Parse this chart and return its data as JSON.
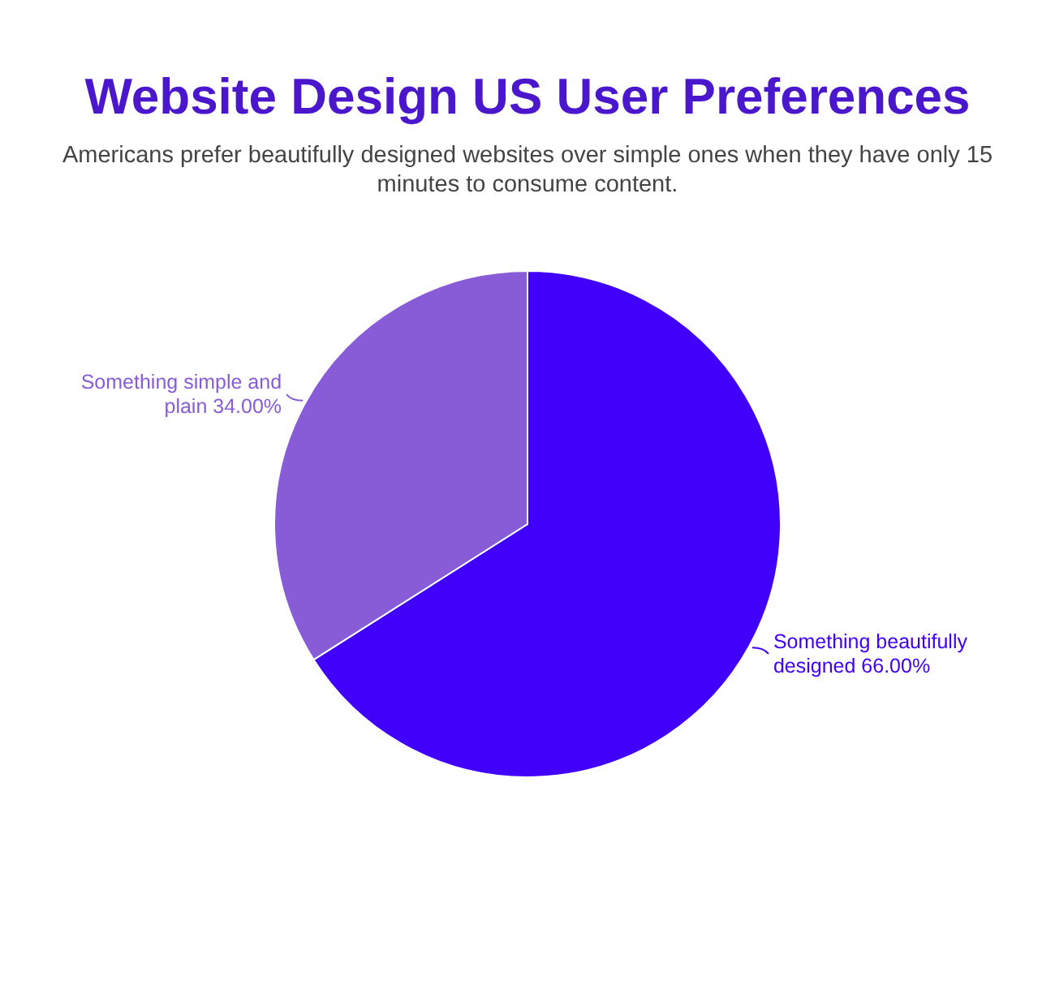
{
  "chart_data": {
    "type": "pie",
    "title": "Website Design US User Preferences",
    "subtitle": "Americans prefer beautifully designed websites over simple ones when they have only 15 minutes to consume content.",
    "categories": [
      "Something beautifully designed",
      "Something simple and plain"
    ],
    "values": [
      66,
      34
    ],
    "colors": [
      "#4100fa",
      "#875cd6"
    ],
    "data_labels": true,
    "value_labels": [
      "66.00%",
      "34.00%"
    ]
  }
}
